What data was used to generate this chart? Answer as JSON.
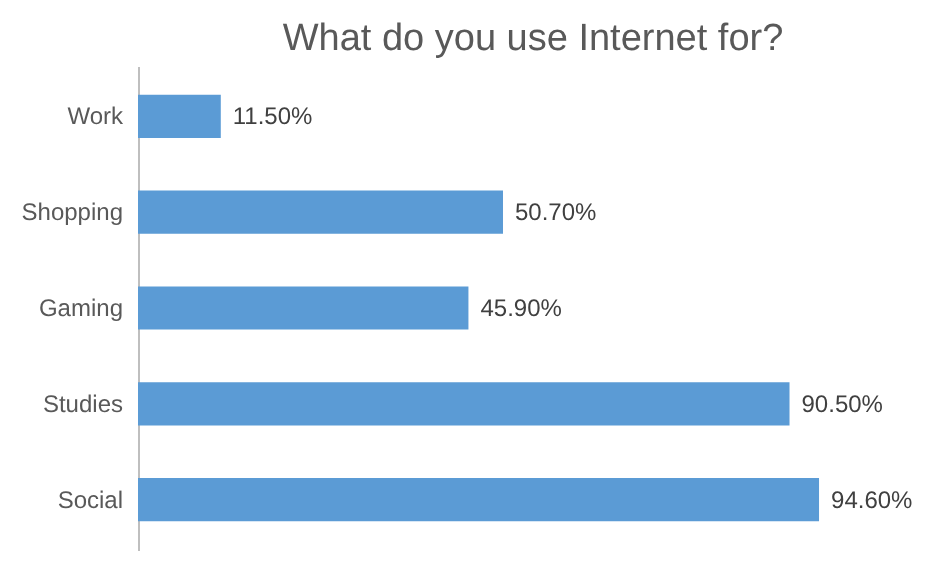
{
  "chart_data": {
    "type": "bar",
    "orientation": "horizontal",
    "title": "What do you use Internet for?",
    "categories": [
      "Work",
      "Shopping",
      "Gaming",
      "Studies",
      "Social"
    ],
    "values": [
      11.5,
      50.7,
      45.9,
      90.5,
      94.6
    ],
    "value_labels": [
      "11.50%",
      "50.70%",
      "45.90%",
      "90.50%",
      "94.60%"
    ],
    "color": "#5b9bd5",
    "grid": false
  }
}
